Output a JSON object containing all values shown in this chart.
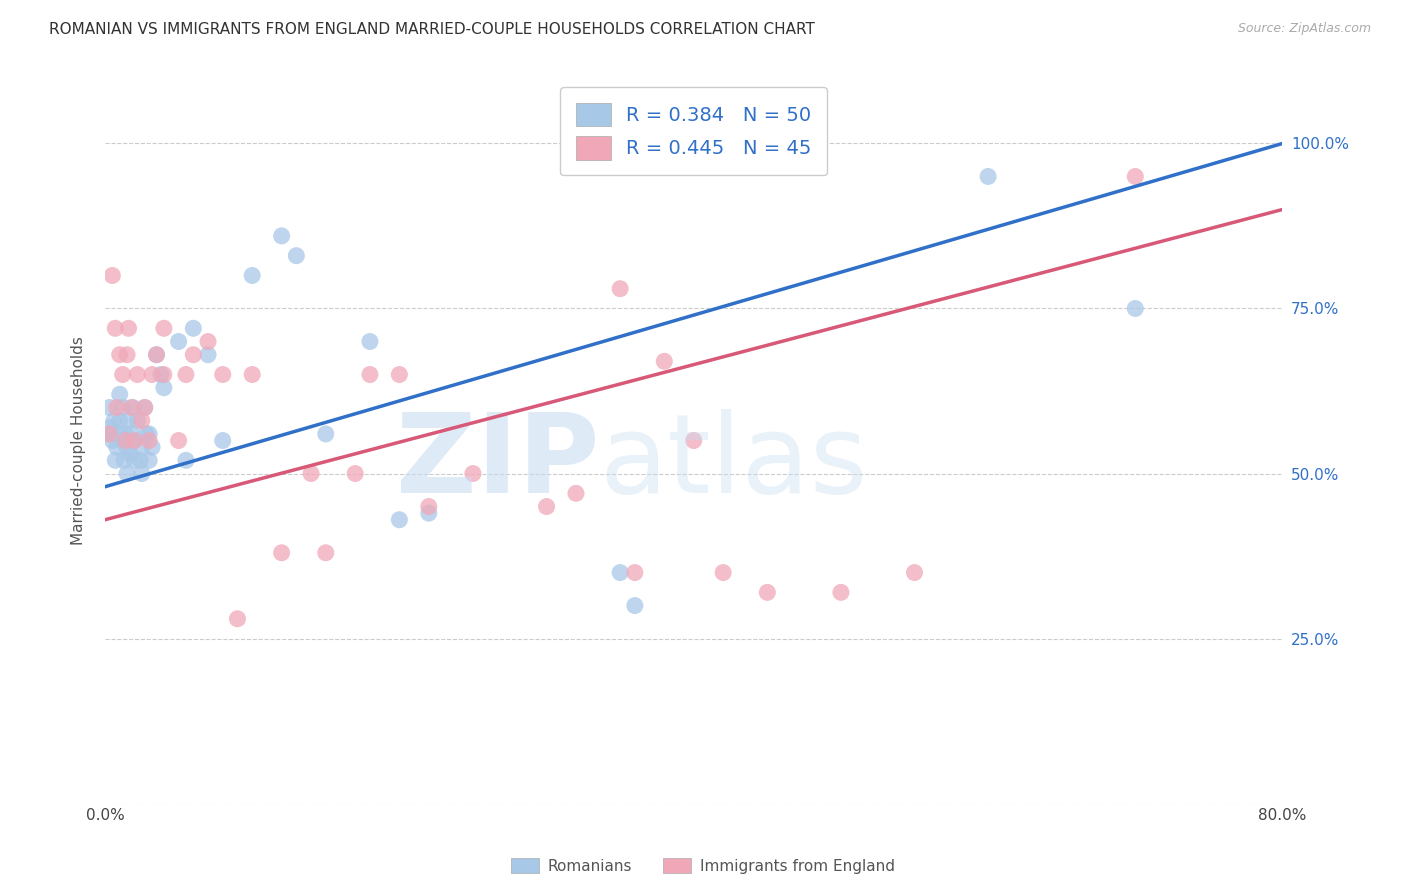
{
  "title": "ROMANIAN VS IMMIGRANTS FROM ENGLAND MARRIED-COUPLE HOUSEHOLDS CORRELATION CHART",
  "source": "Source: ZipAtlas.com",
  "ylabel_text": "Married-couple Households",
  "xlim": [
    0.0,
    0.8
  ],
  "ylim": [
    0.0,
    1.1
  ],
  "ytick_vals": [
    0.0,
    0.25,
    0.5,
    0.75,
    1.0
  ],
  "ytick_labels_right": [
    "",
    "25.0%",
    "50.0%",
    "75.0%",
    "100.0%"
  ],
  "xtick_vals": [
    0.0,
    0.1,
    0.2,
    0.3,
    0.4,
    0.5,
    0.6,
    0.7,
    0.8
  ],
  "xtick_labels": [
    "0.0%",
    "",
    "",
    "",
    "",
    "",
    "",
    "",
    "80.0%"
  ],
  "legend_blue_label": "R = 0.384   N = 50",
  "legend_pink_label": "R = 0.445   N = 45",
  "legend_bottom_blue": "Romanians",
  "legend_bottom_pink": "Immigrants from England",
  "blue_color": "#a8c8e8",
  "pink_color": "#f0a8b8",
  "blue_line_color": "#3070c8",
  "pink_line_color": "#d85878",
  "blue_line_x0": 0.0,
  "blue_line_y0": 0.48,
  "blue_line_x1": 0.8,
  "blue_line_y1": 1.0,
  "pink_line_x0": 0.0,
  "pink_line_y0": 0.43,
  "pink_line_x1": 0.8,
  "pink_line_y1": 0.9,
  "blue_scatter_x": [
    0.002,
    0.003,
    0.004,
    0.005,
    0.006,
    0.007,
    0.008,
    0.009,
    0.01,
    0.01,
    0.012,
    0.012,
    0.013,
    0.014,
    0.015,
    0.015,
    0.016,
    0.017,
    0.018,
    0.019,
    0.02,
    0.02,
    0.022,
    0.024,
    0.025,
    0.025,
    0.027,
    0.028,
    0.03,
    0.03,
    0.032,
    0.035,
    0.038,
    0.04,
    0.05,
    0.055,
    0.06,
    0.07,
    0.08,
    0.1,
    0.12,
    0.13,
    0.15,
    0.18,
    0.2,
    0.22,
    0.35,
    0.36,
    0.6,
    0.7
  ],
  "blue_scatter_y": [
    0.56,
    0.6,
    0.57,
    0.55,
    0.58,
    0.52,
    0.54,
    0.56,
    0.58,
    0.62,
    0.55,
    0.6,
    0.52,
    0.56,
    0.5,
    0.54,
    0.58,
    0.53,
    0.56,
    0.6,
    0.52,
    0.55,
    0.58,
    0.52,
    0.5,
    0.54,
    0.6,
    0.56,
    0.52,
    0.56,
    0.54,
    0.68,
    0.65,
    0.63,
    0.7,
    0.52,
    0.72,
    0.68,
    0.55,
    0.8,
    0.86,
    0.83,
    0.56,
    0.7,
    0.43,
    0.44,
    0.35,
    0.3,
    0.95,
    0.75
  ],
  "pink_scatter_x": [
    0.003,
    0.005,
    0.007,
    0.008,
    0.01,
    0.012,
    0.014,
    0.015,
    0.016,
    0.018,
    0.02,
    0.022,
    0.025,
    0.027,
    0.03,
    0.032,
    0.035,
    0.04,
    0.04,
    0.05,
    0.055,
    0.06,
    0.07,
    0.08,
    0.09,
    0.1,
    0.12,
    0.14,
    0.15,
    0.17,
    0.18,
    0.2,
    0.22,
    0.25,
    0.3,
    0.32,
    0.35,
    0.36,
    0.38,
    0.4,
    0.42,
    0.45,
    0.5,
    0.55,
    0.7
  ],
  "pink_scatter_y": [
    0.56,
    0.8,
    0.72,
    0.6,
    0.68,
    0.65,
    0.55,
    0.68,
    0.72,
    0.6,
    0.55,
    0.65,
    0.58,
    0.6,
    0.55,
    0.65,
    0.68,
    0.65,
    0.72,
    0.55,
    0.65,
    0.68,
    0.7,
    0.65,
    0.28,
    0.65,
    0.38,
    0.5,
    0.38,
    0.5,
    0.65,
    0.65,
    0.45,
    0.5,
    0.45,
    0.47,
    0.78,
    0.35,
    0.67,
    0.55,
    0.35,
    0.32,
    0.32,
    0.35,
    0.95
  ]
}
